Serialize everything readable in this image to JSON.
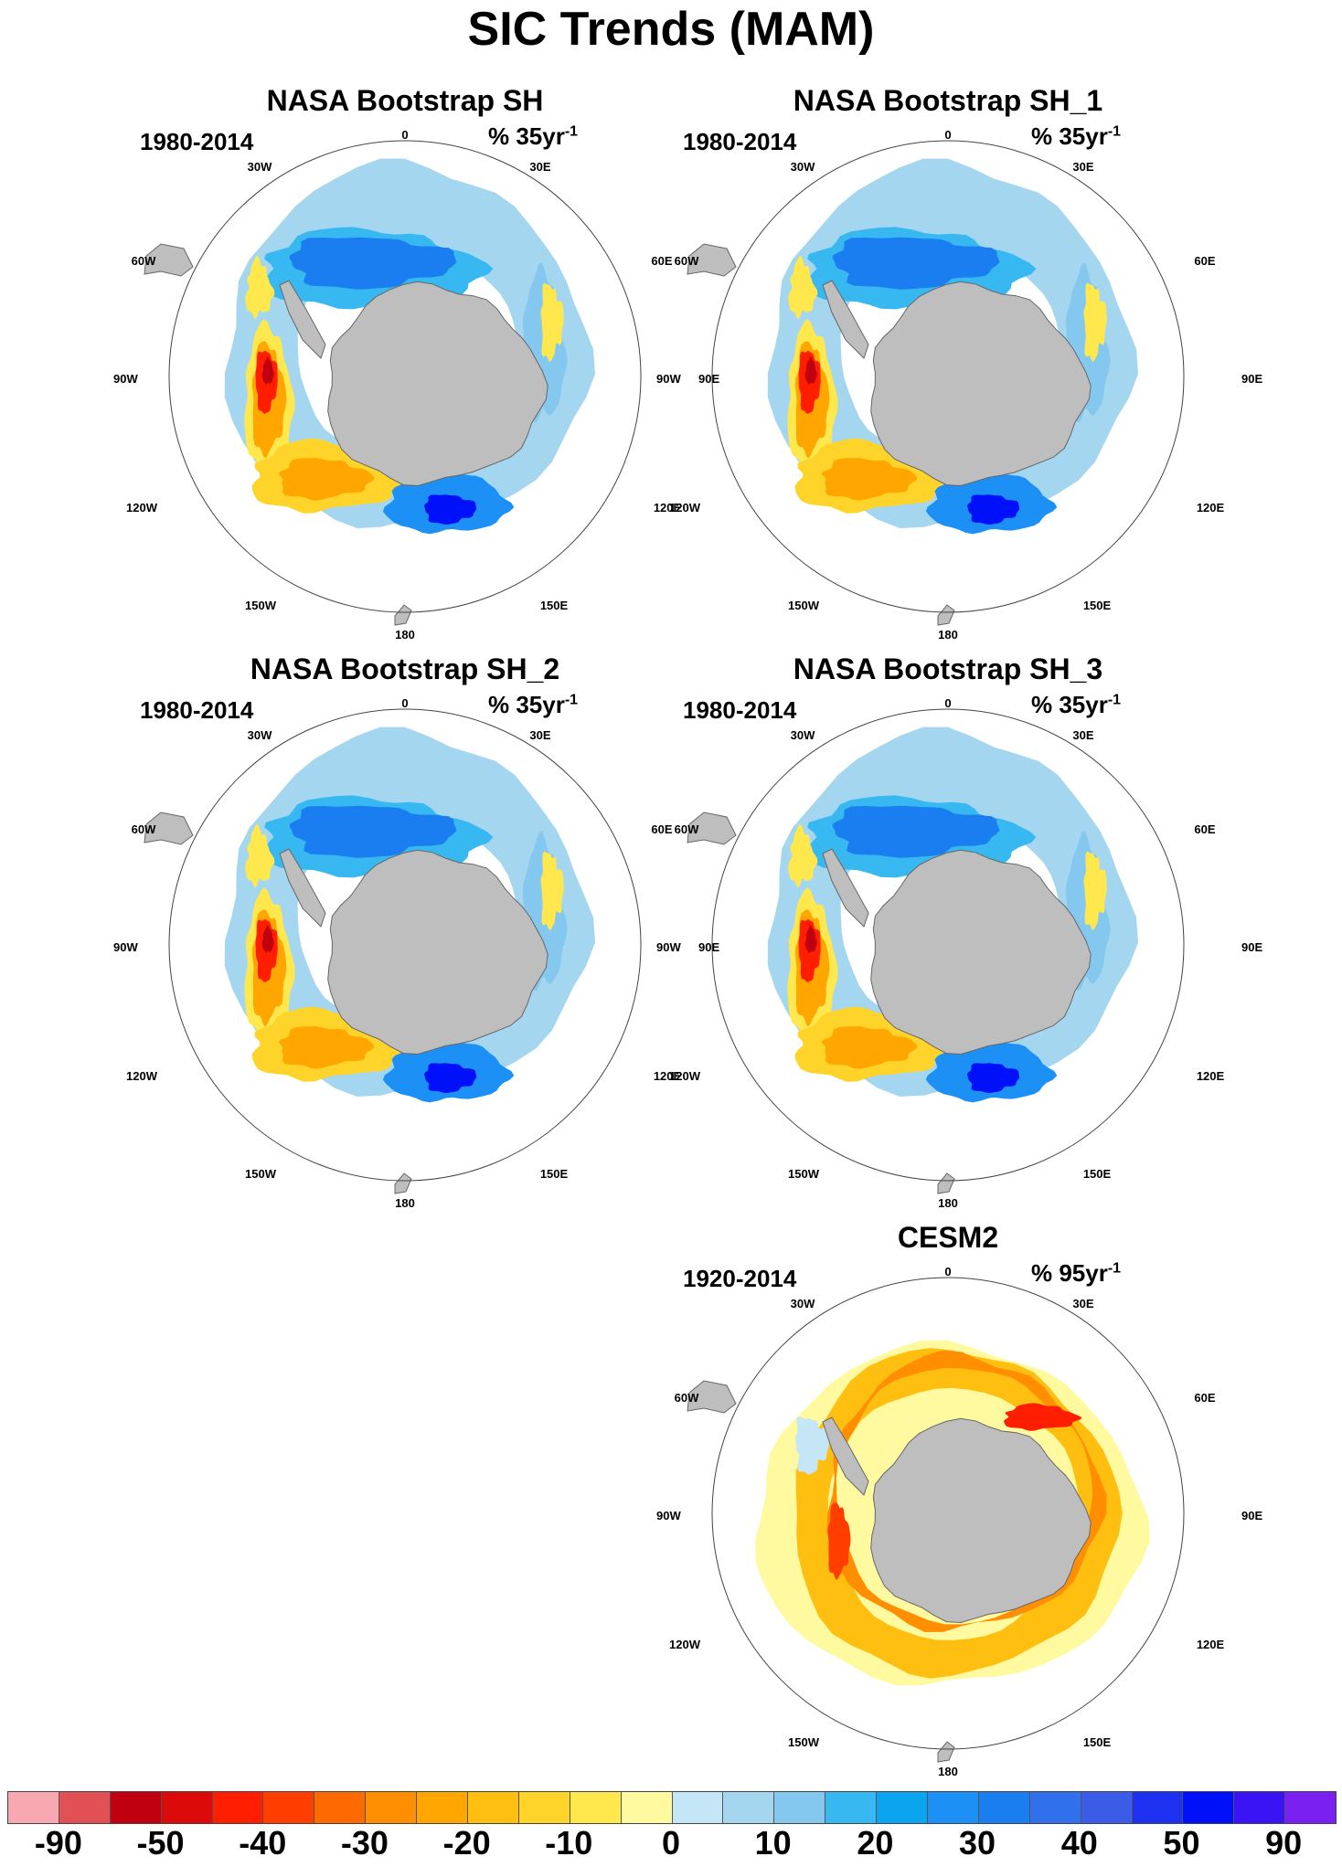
{
  "figure": {
    "title": "SIC Trends (MAM)"
  },
  "longitude_labels": [
    "0",
    "30E",
    "60E",
    "90E",
    "120E",
    "150E",
    "180",
    "150W",
    "120W",
    "90W",
    "60W",
    "30W"
  ],
  "panels": [
    {
      "title": "NASA Bootstrap SH",
      "period": "1980-2014",
      "units": "% 35yr",
      "units_exp": "-1",
      "pattern": "obs"
    },
    {
      "title": "NASA Bootstrap SH_1",
      "period": "1980-2014",
      "units": "% 35yr",
      "units_exp": "-1",
      "pattern": "obs"
    },
    {
      "title": "NASA Bootstrap SH_2",
      "period": "1980-2014",
      "units": "% 35yr",
      "units_exp": "-1",
      "pattern": "obs"
    },
    {
      "title": "NASA Bootstrap SH_3",
      "period": "1980-2014",
      "units": "% 35yr",
      "units_exp": "-1",
      "pattern": "obs"
    },
    {
      "title": "CESM2",
      "period": "1920-2014",
      "units": "% 95yr",
      "units_exp": "-1",
      "pattern": "model"
    }
  ],
  "colorbar": {
    "colors": [
      "#f7a8b0",
      "#e05055",
      "#c00010",
      "#dd0a0a",
      "#ff1f00",
      "#ff3e00",
      "#ff6a00",
      "#ff8f00",
      "#ffa700",
      "#ffbf10",
      "#ffd42a",
      "#ffe74e",
      "#fffaa0",
      "#c4e6f6",
      "#a5d6f0",
      "#84c8ef",
      "#37b8f0",
      "#0aa5ee",
      "#1d90f5",
      "#1a7ef0",
      "#3070ec",
      "#3b5ce6",
      "#1e30f0",
      "#0010f8",
      "#3a14f4",
      "#7a20f0"
    ],
    "labels": [
      "-90",
      "-50",
      "-40",
      "-30",
      "-20",
      "-10",
      "0",
      "10",
      "20",
      "30",
      "40",
      "50",
      "90"
    ]
  },
  "colors": {
    "land": "#bebebe",
    "coast": "#666666",
    "circle": "#444444"
  }
}
